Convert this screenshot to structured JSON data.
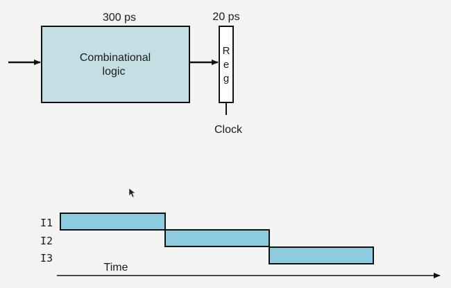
{
  "stage": {
    "logic_delay": "300 ps",
    "logic_label_line1": "Combinational",
    "logic_label_line2": "logic",
    "reg_delay": "20 ps",
    "reg_letters": [
      "R",
      "e",
      "g"
    ],
    "clock_label": "Clock"
  },
  "timeline": {
    "instructions": [
      "I1",
      "I2",
      "I3"
    ],
    "axis_label": "Time"
  },
  "colors": {
    "logic_fill": "#c4dfe3",
    "bar_fill": "#8ccbe0",
    "stroke": "#111111"
  }
}
